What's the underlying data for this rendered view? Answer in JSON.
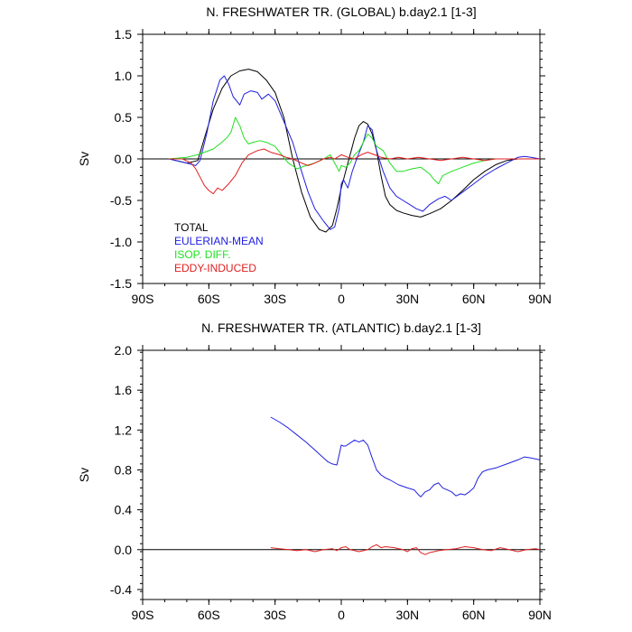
{
  "colors": {
    "TOTAL": "#000000",
    "EULERIAN-MEAN": "#2020e0",
    "ISOP. DIFF.": "#20e020",
    "EDDY-INDUCED": "#e02020",
    "zero_line": "#000000"
  },
  "chart_data": [
    {
      "type": "line",
      "title": "N. FRESHWATER TR. (GLOBAL) b.day2.1 [1-3]",
      "xlabel": "",
      "ylabel": "Sv",
      "xlim": [
        -90,
        90
      ],
      "ylim": [
        -1.5,
        1.5
      ],
      "xticks": [
        -90,
        -60,
        -30,
        0,
        30,
        60,
        90
      ],
      "xtick_labels": [
        "90S",
        "60S",
        "30S",
        "0",
        "30N",
        "60N",
        "90N"
      ],
      "yticks": [
        -1.5,
        -1.0,
        -0.5,
        0.0,
        0.5,
        1.0,
        1.5
      ],
      "ytick_labels": [
        "-1.5",
        "-1.0",
        "-0.5",
        "0.0",
        "0.5",
        "1.0",
        "1.5"
      ],
      "legend": {
        "placement": "bottom-left",
        "entries": [
          "TOTAL",
          "EULERIAN-MEAN",
          "ISOP. DIFF.",
          "EDDY-INDUCED"
        ]
      },
      "series": [
        {
          "name": "TOTAL",
          "x": [
            -78,
            -70,
            -65,
            -62,
            -58,
            -54,
            -50,
            -46,
            -42,
            -38,
            -34,
            -30,
            -26,
            -22,
            -18,
            -14,
            -10,
            -7,
            -4,
            -2,
            0,
            2,
            4,
            6,
            8,
            10,
            12,
            14,
            16,
            18,
            20,
            22,
            25,
            28,
            32,
            36,
            40,
            45,
            50,
            55,
            60,
            65,
            70,
            75,
            80,
            85,
            90
          ],
          "values": [
            0.0,
            -0.05,
            -0.02,
            0.25,
            0.6,
            0.85,
            1.0,
            1.06,
            1.08,
            1.05,
            0.95,
            0.8,
            0.5,
            0.0,
            -0.4,
            -0.7,
            -0.85,
            -0.88,
            -0.8,
            -0.6,
            -0.35,
            -0.15,
            0.05,
            0.25,
            0.4,
            0.45,
            0.42,
            0.3,
            0.1,
            -0.2,
            -0.45,
            -0.55,
            -0.62,
            -0.65,
            -0.68,
            -0.7,
            -0.66,
            -0.6,
            -0.5,
            -0.38,
            -0.25,
            -0.15,
            -0.07,
            -0.02,
            0.0,
            0.0,
            0.0
          ]
        },
        {
          "name": "EULERIAN-MEAN",
          "x": [
            -78,
            -70,
            -66,
            -64,
            -61,
            -58,
            -55,
            -53,
            -51,
            -49,
            -46,
            -44,
            -41,
            -38,
            -36,
            -33,
            -30,
            -26,
            -22,
            -18,
            -15,
            -12,
            -8,
            -5,
            -3,
            -1,
            0,
            1,
            3,
            5,
            7,
            10,
            12,
            14,
            16,
            19,
            22,
            25,
            28,
            31,
            34,
            37,
            40,
            44,
            47,
            50,
            55,
            60,
            65,
            70,
            75,
            80,
            83,
            86,
            90
          ],
          "values": [
            0.0,
            -0.05,
            -0.08,
            -0.02,
            0.3,
            0.7,
            0.95,
            1.0,
            0.9,
            0.75,
            0.65,
            0.78,
            0.82,
            0.8,
            0.72,
            0.78,
            0.7,
            0.45,
            0.2,
            -0.15,
            -0.4,
            -0.6,
            -0.75,
            -0.85,
            -0.82,
            -0.6,
            -0.3,
            -0.25,
            -0.35,
            -0.15,
            0.0,
            0.2,
            0.4,
            0.35,
            0.1,
            -0.15,
            -0.35,
            -0.45,
            -0.5,
            -0.55,
            -0.6,
            -0.63,
            -0.55,
            -0.48,
            -0.45,
            -0.5,
            -0.4,
            -0.3,
            -0.2,
            -0.12,
            -0.05,
            0.02,
            0.03,
            0.02,
            0.0
          ]
        },
        {
          "name": "ISOP. DIFF.",
          "x": [
            -78,
            -70,
            -65,
            -62,
            -58,
            -55,
            -52,
            -50,
            -48,
            -46,
            -44,
            -42,
            -40,
            -37,
            -34,
            -30,
            -27,
            -24,
            -20,
            -16,
            -12,
            -8,
            -5,
            -3,
            -1,
            0,
            2,
            4,
            6,
            8,
            10,
            12,
            14,
            16,
            19,
            22,
            25,
            28,
            32,
            36,
            40,
            42,
            44,
            46,
            50,
            55,
            60,
            65,
            70,
            75,
            80,
            85,
            90
          ],
          "values": [
            0.0,
            0.02,
            0.05,
            0.08,
            0.12,
            0.18,
            0.25,
            0.32,
            0.5,
            0.4,
            0.25,
            0.18,
            0.2,
            0.22,
            0.2,
            0.15,
            0.05,
            -0.05,
            -0.12,
            -0.08,
            -0.05,
            0.0,
            0.05,
            -0.05,
            -0.15,
            -0.08,
            -0.1,
            -0.05,
            0.05,
            0.1,
            0.2,
            0.3,
            0.25,
            0.15,
            0.1,
            -0.05,
            -0.15,
            -0.15,
            -0.12,
            -0.1,
            -0.18,
            -0.25,
            -0.3,
            -0.2,
            -0.15,
            -0.1,
            -0.05,
            -0.02,
            0.0,
            0.0,
            0.0,
            0.0,
            0.0
          ]
        },
        {
          "name": "EDDY-INDUCED",
          "x": [
            -78,
            -72,
            -68,
            -66,
            -64,
            -62,
            -60,
            -58,
            -56,
            -54,
            -51,
            -48,
            -45,
            -42,
            -38,
            -35,
            -32,
            -28,
            -25,
            -22,
            -18,
            -15,
            -12,
            -8,
            -5,
            -3,
            0,
            3,
            6,
            9,
            12,
            15,
            18,
            22,
            26,
            30,
            35,
            40,
            45,
            50,
            55,
            60,
            65,
            70,
            75,
            80,
            85,
            90
          ],
          "values": [
            0.0,
            0.0,
            -0.05,
            -0.12,
            -0.22,
            -0.32,
            -0.38,
            -0.42,
            -0.35,
            -0.38,
            -0.3,
            -0.2,
            -0.05,
            0.05,
            0.1,
            0.12,
            0.08,
            0.05,
            0.02,
            0.0,
            -0.05,
            -0.08,
            -0.05,
            0.0,
            0.02,
            0.0,
            0.05,
            0.02,
            0.0,
            0.05,
            0.08,
            0.05,
            0.02,
            0.0,
            0.02,
            0.0,
            0.02,
            0.0,
            -0.02,
            0.0,
            0.02,
            0.0,
            -0.02,
            0.0,
            0.0,
            0.0,
            0.0,
            0.0
          ]
        }
      ]
    },
    {
      "type": "line",
      "title": "N. FRESHWATER TR. (ATLANTIC) b.day2.1 [1-3]",
      "xlabel": "",
      "ylabel": "Sv",
      "xlim": [
        -90,
        90
      ],
      "ylim": [
        -0.5,
        2.0
      ],
      "xticks": [
        -90,
        -60,
        -30,
        0,
        30,
        60,
        90
      ],
      "xtick_labels": [
        "90S",
        "60S",
        "30S",
        "0",
        "30N",
        "60N",
        "90N"
      ],
      "yticks": [
        -0.4,
        0.0,
        0.4,
        0.8,
        1.2,
        1.6,
        2.0
      ],
      "ytick_labels": [
        "-0.4",
        "0.0",
        "0.4",
        "0.8",
        "1.2",
        "1.6",
        "2.0"
      ],
      "series": [
        {
          "name": "EULERIAN-MEAN",
          "x": [
            -32,
            -28,
            -24,
            -20,
            -16,
            -12,
            -8,
            -6,
            -4,
            -2,
            -1,
            0,
            1,
            2,
            4,
            6,
            8,
            10,
            12,
            14,
            16,
            18,
            20,
            22,
            26,
            30,
            33,
            35,
            36,
            38,
            40,
            42,
            44,
            46,
            48,
            50,
            52,
            54,
            56,
            58,
            60,
            62,
            64,
            66,
            70,
            75,
            80,
            83,
            86,
            90
          ],
          "values": [
            1.33,
            1.28,
            1.22,
            1.15,
            1.08,
            1.0,
            0.92,
            0.88,
            0.86,
            0.85,
            0.95,
            1.05,
            1.04,
            1.04,
            1.07,
            1.1,
            1.08,
            1.1,
            1.05,
            0.92,
            0.8,
            0.75,
            0.72,
            0.7,
            0.65,
            0.62,
            0.6,
            0.55,
            0.53,
            0.58,
            0.6,
            0.65,
            0.67,
            0.62,
            0.6,
            0.58,
            0.54,
            0.56,
            0.55,
            0.58,
            0.62,
            0.72,
            0.78,
            0.8,
            0.82,
            0.86,
            0.9,
            0.93,
            0.92,
            0.9
          ]
        },
        {
          "name": "EDDY-INDUCED",
          "x": [
            -32,
            -28,
            -24,
            -20,
            -16,
            -12,
            -8,
            -4,
            -2,
            0,
            2,
            4,
            8,
            12,
            14,
            16,
            18,
            20,
            24,
            28,
            30,
            32,
            34,
            36,
            38,
            40,
            44,
            48,
            52,
            56,
            60,
            64,
            68,
            72,
            76,
            80,
            84,
            88,
            90
          ],
          "values": [
            0.02,
            0.01,
            0.0,
            -0.01,
            0.0,
            -0.02,
            0.0,
            0.01,
            -0.01,
            0.02,
            0.03,
            0.0,
            -0.02,
            0.0,
            0.03,
            0.05,
            0.02,
            0.03,
            0.02,
            0.0,
            -0.02,
            0.01,
            0.02,
            -0.03,
            -0.05,
            -0.03,
            -0.01,
            0.0,
            0.01,
            0.03,
            0.02,
            0.0,
            -0.01,
            0.02,
            0.0,
            -0.02,
            0.0,
            0.01,
            0.0
          ]
        }
      ]
    }
  ]
}
